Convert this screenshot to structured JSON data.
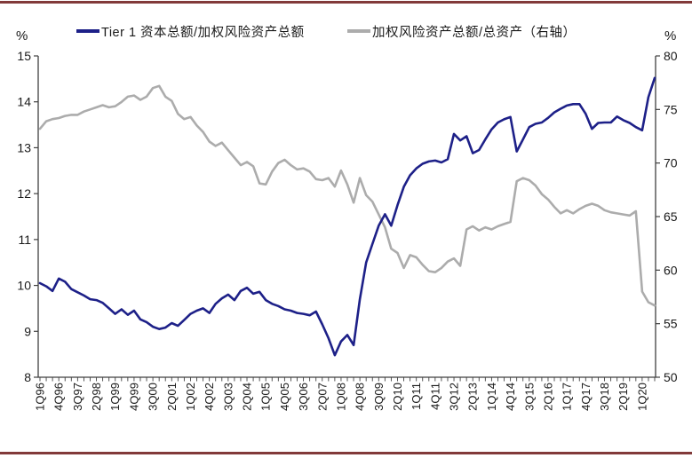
{
  "page": {
    "background": "#ffffff",
    "top_rule_color": "#823a3a",
    "bottom_rule_color": "#823a3a"
  },
  "chart_data": {
    "type": "line",
    "title": "",
    "grid": false,
    "legend_position": "top",
    "n_points": 99,
    "x_first": "1Q96",
    "x_last": "3Q20",
    "x_label_step": 3,
    "x_labels": [
      "1Q96",
      "4Q96",
      "3Q97",
      "2Q98",
      "1Q99",
      "4Q99",
      "3Q00",
      "2Q01",
      "1Q02",
      "4Q02",
      "3Q03",
      "2Q04",
      "1Q05",
      "4Q05",
      "3Q06",
      "2Q07",
      "1Q08",
      "4Q08",
      "3Q09",
      "2Q10",
      "1Q11",
      "4Q11",
      "3Q12",
      "2Q13",
      "1Q14",
      "4Q14",
      "3Q15",
      "2Q16",
      "1Q17",
      "4Q17",
      "3Q18",
      "2Q19",
      "1Q20"
    ],
    "y_left": {
      "unit": "%",
      "min": 8,
      "max": 15,
      "ticks": [
        15,
        14,
        13,
        12,
        11,
        10,
        9,
        8
      ]
    },
    "y_right": {
      "unit": "%",
      "min": 50,
      "max": 80,
      "ticks": [
        80,
        75,
        70,
        65,
        60,
        55,
        50
      ]
    },
    "series": [
      {
        "name": "Tier 1 资本总额/加权风险资产总额",
        "axis": "left",
        "color": "#1d2088",
        "values": [
          10.05,
          9.98,
          9.88,
          10.15,
          10.08,
          9.92,
          9.85,
          9.78,
          9.7,
          9.68,
          9.62,
          9.5,
          9.38,
          9.48,
          9.36,
          9.45,
          9.26,
          9.2,
          9.1,
          9.05,
          9.08,
          9.18,
          9.12,
          9.25,
          9.38,
          9.45,
          9.5,
          9.4,
          9.6,
          9.72,
          9.8,
          9.68,
          9.88,
          9.95,
          9.82,
          9.86,
          9.68,
          9.6,
          9.55,
          9.48,
          9.45,
          9.4,
          9.38,
          9.35,
          9.43,
          9.15,
          8.85,
          8.48,
          8.78,
          8.92,
          8.7,
          9.7,
          10.5,
          10.9,
          11.3,
          11.55,
          11.3,
          11.75,
          12.15,
          12.4,
          12.55,
          12.65,
          12.7,
          12.72,
          12.68,
          12.75,
          13.3,
          13.16,
          13.25,
          12.88,
          12.95,
          13.18,
          13.4,
          13.55,
          13.62,
          13.67,
          12.92,
          13.18,
          13.45,
          13.52,
          13.55,
          13.65,
          13.77,
          13.85,
          13.92,
          13.95,
          13.95,
          13.74,
          13.41,
          13.54,
          13.55,
          13.55,
          13.68,
          13.6,
          13.54,
          13.45,
          13.38,
          14.1,
          14.52
        ]
      },
      {
        "name": "加权风险资产总额/总资产（右轴）",
        "axis": "right",
        "color": "#acacac",
        "values": [
          73.2,
          73.9,
          74.1,
          74.2,
          74.4,
          74.5,
          74.5,
          74.8,
          75.0,
          75.2,
          75.4,
          75.2,
          75.3,
          75.7,
          76.2,
          76.3,
          75.9,
          76.2,
          77.0,
          77.2,
          76.2,
          75.8,
          74.6,
          74.1,
          74.3,
          73.5,
          72.9,
          72.0,
          71.6,
          71.9,
          71.2,
          70.5,
          69.8,
          70.1,
          69.7,
          68.1,
          68.0,
          69.2,
          70.0,
          70.3,
          69.8,
          69.4,
          69.5,
          69.2,
          68.5,
          68.4,
          68.6,
          67.8,
          69.3,
          68.0,
          66.3,
          68.6,
          67.0,
          66.4,
          65.2,
          64.0,
          62.0,
          61.6,
          60.2,
          61.4,
          61.2,
          60.5,
          59.9,
          59.8,
          60.2,
          60.8,
          61.1,
          60.4,
          63.8,
          64.1,
          63.7,
          64.0,
          63.8,
          64.1,
          64.3,
          64.5,
          68.3,
          68.6,
          68.4,
          67.9,
          67.1,
          66.6,
          65.9,
          65.3,
          65.6,
          65.3,
          65.7,
          66.0,
          66.2,
          66.0,
          65.6,
          65.4,
          65.3,
          65.2,
          65.1,
          65.5,
          58.0,
          57.0,
          56.7
        ]
      }
    ]
  }
}
